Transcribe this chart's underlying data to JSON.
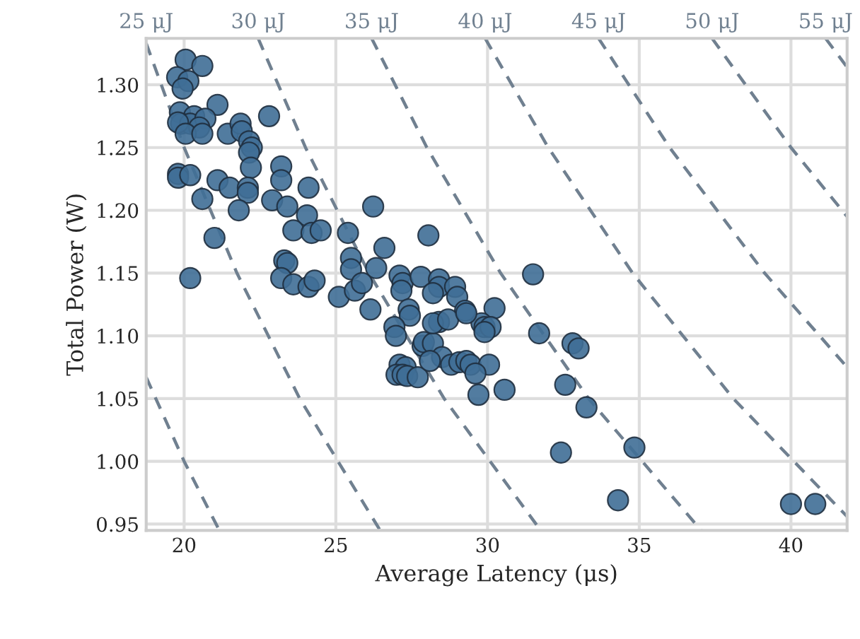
{
  "chart_data": {
    "type": "scatter",
    "xlabel": "Average Latency (μs)",
    "ylabel": "Total Power (W)",
    "xlim": [
      18.75,
      41.85
    ],
    "ylim": [
      0.945,
      1.337
    ],
    "xticks": [
      20,
      25,
      30,
      35,
      40
    ],
    "yticks": [
      {
        "value": 0.95,
        "label": "0.95"
      },
      {
        "value": 1.0,
        "label": "1.00"
      },
      {
        "value": 1.05,
        "label": "1.05"
      },
      {
        "value": 1.1,
        "label": "1.10"
      },
      {
        "value": 1.15,
        "label": "1.15"
      },
      {
        "value": 1.2,
        "label": "1.20"
      },
      {
        "value": 1.25,
        "label": "1.25"
      },
      {
        "value": 1.3,
        "label": "1.30"
      }
    ],
    "grid": true,
    "legend": false,
    "series": [
      {
        "type": "line",
        "line_style": "dashed",
        "marker": "none",
        "color": "#708090",
        "x": [
          18.75,
          20.0,
          21.16
        ],
        "values": [
          1.067,
          1.0,
          0.945
        ]
      },
      {
        "type": "line",
        "line_style": "dashed",
        "marker": "none",
        "name": "25 μJ",
        "color": "#708090",
        "x": [
          18.75,
          20.0,
          21.74,
          23.81,
          26.46
        ],
        "values": [
          1.333,
          1.25,
          1.15,
          1.05,
          0.945
        ]
      },
      {
        "type": "line",
        "line_style": "dashed",
        "marker": "none",
        "name": "30 μJ",
        "color": "#708090",
        "x": [
          22.44,
          24.0,
          26.09,
          28.57,
          31.75
        ],
        "values": [
          1.337,
          1.25,
          1.15,
          1.05,
          0.945
        ]
      },
      {
        "type": "line",
        "line_style": "dashed",
        "marker": "none",
        "name": "35 μJ",
        "color": "#708090",
        "x": [
          26.18,
          28.0,
          30.43,
          33.33,
          37.04
        ],
        "values": [
          1.337,
          1.25,
          1.15,
          1.05,
          0.945
        ]
      },
      {
        "type": "line",
        "line_style": "dashed",
        "marker": "none",
        "name": "40 μJ",
        "color": "#708090",
        "x": [
          29.92,
          32.0,
          34.78,
          38.1,
          41.85
        ],
        "values": [
          1.337,
          1.25,
          1.15,
          1.05,
          0.956
        ]
      },
      {
        "type": "line",
        "line_style": "dashed",
        "marker": "none",
        "name": "45 μJ",
        "color": "#708090",
        "x": [
          33.66,
          36.0,
          39.13,
          41.85
        ],
        "values": [
          1.337,
          1.25,
          1.15,
          1.075
        ]
      },
      {
        "type": "line",
        "line_style": "dashed",
        "marker": "none",
        "name": "50 μJ",
        "color": "#708090",
        "x": [
          37.4,
          40.0,
          41.85
        ],
        "values": [
          1.337,
          1.25,
          1.195
        ]
      },
      {
        "type": "line",
        "line_style": "dashed",
        "marker": "none",
        "name": "55 μJ",
        "color": "#708090",
        "x": [
          41.14,
          41.85
        ],
        "values": [
          1.337,
          1.314
        ]
      },
      {
        "marker": "circle",
        "color": "#3f6e96",
        "x": [
          20.05,
          20.6,
          19.77,
          20.14,
          19.95,
          21.1,
          19.86,
          20.33,
          19.9,
          20.2,
          20.7,
          20.5,
          19.8,
          20.05,
          20.6,
          21.44,
          21.86,
          21.9,
          22.8,
          22.14,
          22.23,
          22.14,
          22.2,
          23.2,
          23.2,
          19.8,
          19.8,
          20.2,
          21.1,
          21.5,
          22.1,
          22.1,
          20.6,
          22.9,
          23.4,
          24.1,
          26.23,
          21.8,
          24.05,
          21.0,
          23.6,
          24.2,
          24.5,
          25.4,
          28.05,
          20.2,
          23.3,
          23.4,
          26.6,
          25.5,
          25.5,
          26.33,
          23.2,
          23.6,
          24.1,
          24.3,
          25.1,
          25.63,
          26.14,
          25.86,
          27.1,
          27.2,
          27.16,
          27.8,
          28.4,
          28.4,
          28.2,
          28.93,
          29.0,
          29.26,
          30.23,
          27.4,
          27.44,
          26.93,
          26.98,
          27.86,
          27.9,
          28.2,
          28.4,
          28.2,
          28.7,
          29.8,
          29.9,
          30.1,
          29.9,
          29.3,
          31.7,
          31.5,
          27.1,
          27.3,
          27.0,
          27.2,
          27.35,
          27.7,
          28.5,
          28.1,
          28.8,
          29.07,
          29.3,
          29.44,
          30.05,
          29.6,
          29.7,
          30.56,
          32.8,
          33.0,
          32.56,
          33.26,
          32.42,
          34.84,
          34.3,
          40.0,
          40.8
        ],
        "values": [
          1.32,
          1.315,
          1.306,
          1.303,
          1.297,
          1.284,
          1.278,
          1.275,
          1.269,
          1.269,
          1.273,
          1.266,
          1.27,
          1.261,
          1.261,
          1.261,
          1.269,
          1.263,
          1.275,
          1.255,
          1.25,
          1.246,
          1.234,
          1.235,
          1.224,
          1.229,
          1.226,
          1.228,
          1.224,
          1.218,
          1.218,
          1.214,
          1.209,
          1.208,
          1.203,
          1.218,
          1.203,
          1.2,
          1.196,
          1.178,
          1.184,
          1.182,
          1.184,
          1.182,
          1.18,
          1.146,
          1.16,
          1.158,
          1.17,
          1.162,
          1.153,
          1.154,
          1.146,
          1.141,
          1.139,
          1.144,
          1.131,
          1.136,
          1.121,
          1.142,
          1.148,
          1.142,
          1.136,
          1.147,
          1.145,
          1.139,
          1.134,
          1.139,
          1.131,
          1.12,
          1.122,
          1.121,
          1.116,
          1.107,
          1.1,
          1.092,
          1.095,
          1.094,
          1.111,
          1.11,
          1.113,
          1.11,
          1.107,
          1.107,
          1.103,
          1.118,
          1.102,
          1.149,
          1.077,
          1.075,
          1.069,
          1.069,
          1.068,
          1.067,
          1.083,
          1.08,
          1.077,
          1.079,
          1.08,
          1.077,
          1.077,
          1.07,
          1.053,
          1.057,
          1.094,
          1.09,
          1.061,
          1.043,
          1.007,
          1.011,
          0.969,
          0.966,
          0.966
        ]
      }
    ]
  }
}
